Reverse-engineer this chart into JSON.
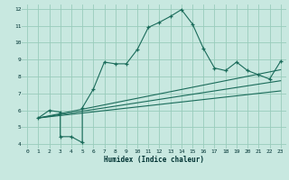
{
  "title": "",
  "xlabel": "Humidex (Indice chaleur)",
  "background_color": "#c8e8e0",
  "grid_color": "#99ccbb",
  "line_color": "#1a6b5a",
  "xlim": [
    -0.5,
    23.5
  ],
  "ylim": [
    3.75,
    12.25
  ],
  "xticks": [
    0,
    1,
    2,
    3,
    4,
    5,
    6,
    7,
    8,
    9,
    10,
    11,
    12,
    13,
    14,
    15,
    16,
    17,
    18,
    19,
    20,
    21,
    22,
    23
  ],
  "yticks": [
    4,
    5,
    6,
    7,
    8,
    9,
    10,
    11,
    12
  ],
  "curve1_x": [
    1,
    2,
    3,
    3,
    4,
    5,
    5,
    6,
    7,
    8,
    9,
    10,
    11,
    12,
    13,
    14,
    15,
    16,
    17,
    18,
    19,
    20,
    21,
    22,
    23
  ],
  "curve1_y": [
    5.55,
    6.0,
    5.9,
    4.45,
    4.45,
    4.1,
    6.15,
    7.25,
    8.85,
    8.75,
    8.75,
    9.6,
    10.9,
    11.2,
    11.55,
    11.95,
    11.1,
    9.65,
    8.5,
    8.35,
    8.85,
    8.35,
    8.1,
    7.85,
    8.9
  ],
  "line2_x": [
    1,
    23
  ],
  "line2_y": [
    5.55,
    8.4
  ],
  "line3_x": [
    1,
    23
  ],
  "line3_y": [
    5.55,
    7.75
  ],
  "line4_x": [
    1,
    23
  ],
  "line4_y": [
    5.55,
    7.15
  ]
}
